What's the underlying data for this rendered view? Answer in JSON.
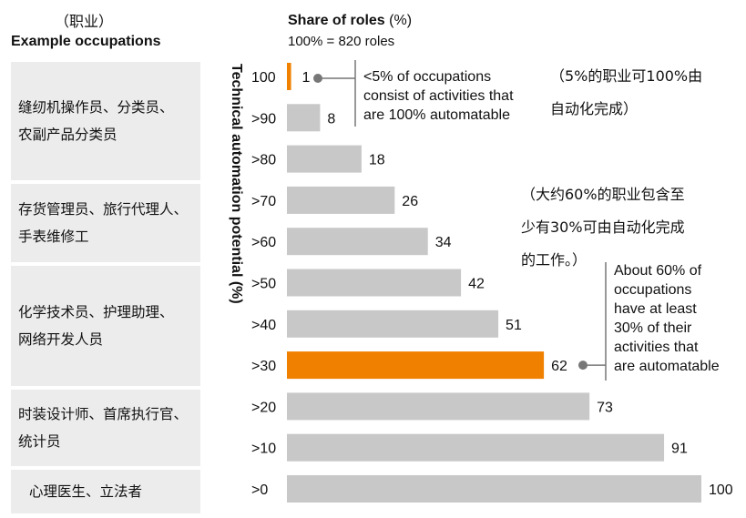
{
  "header": {
    "occupation_cn": "（职业）",
    "occupation_en": "Example occupations",
    "share_title_bold": "Share of roles",
    "share_title_rest": " (%)",
    "share_subtitle": "100% = 820 roles"
  },
  "occupation_groups": [
    {
      "lines": [
        "缝纫机操作员、分类员、",
        "农副产品分类员"
      ]
    },
    {
      "lines": [
        "存货管理员、旅行代理人、",
        "手表维修工"
      ]
    },
    {
      "lines": [
        "化学技术员、护理助理、",
        "网络开发人员"
      ]
    },
    {
      "lines": [
        "时装设计师、首席执行官、",
        "统计员"
      ]
    },
    {
      "lines": [
        "心理医生、立法者"
      ]
    }
  ],
  "annotations": {
    "top_en": [
      "<5% of occupations",
      "consist of activities that",
      "are 100% automatable"
    ],
    "top_cn": [
      "（5%的职业可100%由",
      "自动化完成）"
    ],
    "mid_cn": [
      "（大约60%的职业包含至",
      "少有30%可由自动化完成",
      "的工作。）"
    ],
    "mid_en": [
      "About 60% of",
      "occupations",
      "have at least",
      "30% of their",
      "activities that",
      "are automatable"
    ]
  },
  "colors": {
    "bar_default": "#c8c8c8",
    "bar_highlight": "#f08000",
    "occupation_box": "#ececec",
    "connector": "#777777"
  },
  "chart_data": {
    "type": "bar",
    "orientation": "horizontal",
    "title": "Share of roles (%)",
    "subtitle": "100% = 820 roles",
    "ylabel": "Technical automation potential (%)",
    "xlim": [
      0,
      100
    ],
    "categories": [
      "100",
      ">90",
      ">80",
      ">70",
      ">60",
      ">50",
      ">40",
      ">30",
      ">20",
      ">10",
      ">0"
    ],
    "values": [
      1,
      8,
      18,
      26,
      34,
      42,
      51,
      62,
      73,
      91,
      100
    ],
    "highlight": [
      "100",
      ">30"
    ],
    "grid": false,
    "legend": "none"
  }
}
